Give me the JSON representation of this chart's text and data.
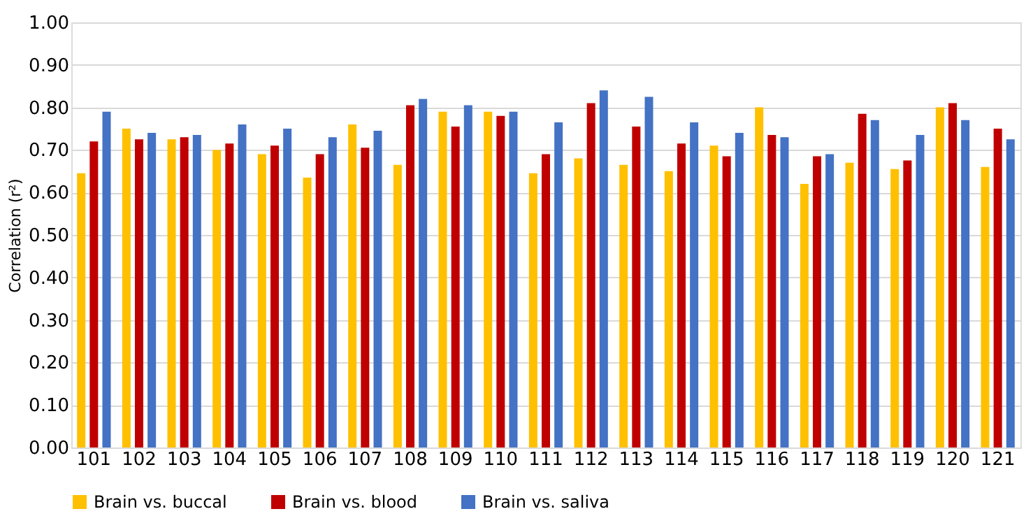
{
  "chart_data": {
    "type": "bar",
    "ylabel": "Correlation (r²)",
    "categories": [
      "101",
      "102",
      "103",
      "104",
      "105",
      "106",
      "107",
      "108",
      "109",
      "110",
      "111",
      "112",
      "113",
      "114",
      "115",
      "116",
      "117",
      "118",
      "119",
      "120",
      "121"
    ],
    "series": [
      {
        "name": "Brain vs. buccal",
        "color": "#ffc000",
        "values": [
          0.645,
          0.75,
          0.725,
          0.7,
          0.69,
          0.635,
          0.76,
          0.665,
          0.79,
          0.79,
          0.645,
          0.68,
          0.665,
          0.65,
          0.71,
          0.8,
          0.62,
          0.67,
          0.655,
          0.8,
          0.66
        ]
      },
      {
        "name": "Brain vs. blood",
        "color": "#c00000",
        "values": [
          0.72,
          0.725,
          0.73,
          0.715,
          0.71,
          0.69,
          0.705,
          0.805,
          0.755,
          0.78,
          0.69,
          0.81,
          0.755,
          0.715,
          0.685,
          0.735,
          0.685,
          0.785,
          0.675,
          0.81,
          0.75
        ]
      },
      {
        "name": "Brain vs. saliva",
        "color": "#4472c4",
        "values": [
          0.79,
          0.74,
          0.735,
          0.76,
          0.75,
          0.73,
          0.745,
          0.82,
          0.805,
          0.79,
          0.765,
          0.84,
          0.825,
          0.765,
          0.74,
          0.73,
          0.69,
          0.77,
          0.735,
          0.77,
          0.725
        ]
      }
    ],
    "ylim": [
      0,
      1.0
    ],
    "yticks": [
      {
        "value": 0,
        "label": "0.00"
      },
      {
        "value": 0.1,
        "label": "0.10"
      },
      {
        "value": 0.2,
        "label": "0.20"
      },
      {
        "value": 0.3,
        "label": "0.30"
      },
      {
        "value": 0.4,
        "label": "0.40"
      },
      {
        "value": 0.5,
        "label": "0.50"
      },
      {
        "value": 0.6,
        "label": "0.60"
      },
      {
        "value": 0.7,
        "label": "0.70"
      },
      {
        "value": 0.8,
        "label": "0.80"
      },
      {
        "value": 0.9,
        "label": "0.90"
      },
      {
        "value": 1.0,
        "label": "1.00"
      }
    ],
    "grid": "y",
    "legend": "bottom"
  }
}
